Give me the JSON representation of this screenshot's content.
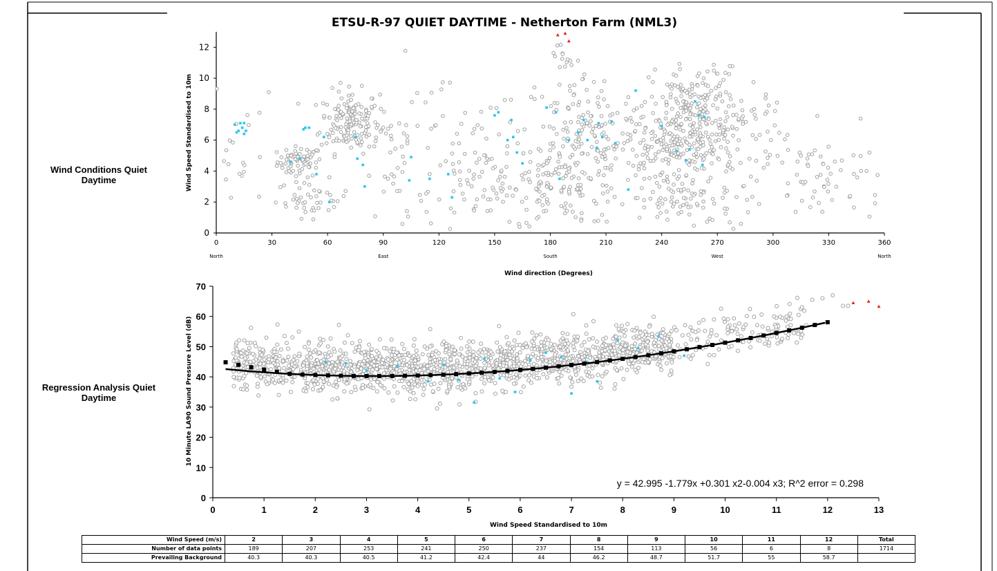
{
  "colors": {
    "grey_point": "#a0a0a0",
    "cyan_point": "#2ec5f0",
    "red_point": "#e8211b",
    "fit_line": "#000000"
  },
  "side_labels": {
    "top": "Wind Conditions Quiet Daytime",
    "bottom": "Regression Analysis Quiet Daytime"
  },
  "chart_data": [
    {
      "type": "scatter",
      "title": "ETSU-R-97 QUIET DAYTIME - Netherton Farm (NML3)",
      "xlabel": "Wind direction (Degrees)",
      "ylabel": "Wind Speed Standardised to 10m",
      "xlim": [
        0,
        360
      ],
      "ylim": [
        0,
        13
      ],
      "x_ticks": [
        0,
        30,
        60,
        90,
        120,
        150,
        180,
        210,
        240,
        270,
        300,
        330,
        360
      ],
      "y_ticks": [
        0,
        2,
        4,
        6,
        8,
        10,
        12
      ],
      "direction_labels": [
        {
          "x": 0,
          "label": "North"
        },
        {
          "x": 90,
          "label": "East"
        },
        {
          "x": 180,
          "label": "South"
        },
        {
          "x": 270,
          "label": "West"
        },
        {
          "x": 360,
          "label": "North"
        }
      ],
      "grey_clusters": [
        {
          "cx": 45,
          "cy": 4.6,
          "sx": 6,
          "sy": 0.5,
          "n": 70
        },
        {
          "cx": 72,
          "cy": 7.2,
          "sx": 8,
          "sy": 1.0,
          "n": 170
        },
        {
          "cx": 52,
          "cy": 2.2,
          "sx": 10,
          "sy": 0.6,
          "n": 45
        },
        {
          "cx": 150,
          "cy": 2.8,
          "sx": 25,
          "sy": 1.2,
          "n": 90
        },
        {
          "cx": 130,
          "cy": 5.5,
          "sx": 18,
          "sy": 2.0,
          "n": 45
        },
        {
          "cx": 190,
          "cy": 3.5,
          "sx": 16,
          "sy": 1.5,
          "n": 120
        },
        {
          "cx": 200,
          "cy": 6.5,
          "sx": 18,
          "sy": 2.0,
          "n": 140
        },
        {
          "cx": 245,
          "cy": 6.0,
          "sx": 12,
          "sy": 1.0,
          "n": 170
        },
        {
          "cx": 258,
          "cy": 8.3,
          "sx": 12,
          "sy": 1.2,
          "n": 150
        },
        {
          "cx": 250,
          "cy": 2.3,
          "sx": 14,
          "sy": 0.9,
          "n": 90
        },
        {
          "cx": 280,
          "cy": 5.5,
          "sx": 14,
          "sy": 2.2,
          "n": 110
        },
        {
          "cx": 330,
          "cy": 3.5,
          "sx": 15,
          "sy": 1.5,
          "n": 60
        },
        {
          "cx": 12,
          "cy": 4.5,
          "sx": 10,
          "sy": 2.0,
          "n": 25
        },
        {
          "cx": 95,
          "cy": 4.5,
          "sx": 8,
          "sy": 2.5,
          "n": 30
        },
        {
          "cx": 186,
          "cy": 11.5,
          "sx": 3,
          "sy": 0.9,
          "n": 18
        }
      ],
      "cyan_points": [
        [
          10,
          7.0
        ],
        [
          12,
          6.6
        ],
        [
          13,
          7.1
        ],
        [
          15,
          6.4
        ],
        [
          15,
          7.1
        ],
        [
          16,
          6.6
        ],
        [
          11,
          6.5
        ],
        [
          14,
          6.8
        ],
        [
          47,
          6.7
        ],
        [
          48,
          6.8
        ],
        [
          50,
          6.8
        ],
        [
          58,
          6.2
        ],
        [
          45,
          4.8
        ],
        [
          40,
          4.6
        ],
        [
          54,
          3.8
        ],
        [
          61,
          2.0
        ],
        [
          75,
          6.2
        ],
        [
          76,
          4.8
        ],
        [
          79,
          4.4
        ],
        [
          80,
          3.0
        ],
        [
          104,
          3.4
        ],
        [
          105,
          4.9
        ],
        [
          115,
          3.5
        ],
        [
          125,
          3.8
        ],
        [
          127,
          2.3
        ],
        [
          150,
          7.6
        ],
        [
          152,
          7.8
        ],
        [
          157,
          6.0
        ],
        [
          159,
          7.3
        ],
        [
          160,
          6.2
        ],
        [
          162,
          5.2
        ],
        [
          165,
          4.5
        ],
        [
          178,
          8.1
        ],
        [
          183,
          7.8
        ],
        [
          185,
          3.5
        ],
        [
          190,
          6.0
        ],
        [
          195,
          6.5
        ],
        [
          198,
          7.3
        ],
        [
          200,
          6.0
        ],
        [
          205,
          5.5
        ],
        [
          206,
          7.1
        ],
        [
          208,
          6.2
        ],
        [
          213,
          7.2
        ],
        [
          215,
          5.8
        ],
        [
          222,
          2.8
        ],
        [
          226,
          9.2
        ],
        [
          240,
          6.9
        ],
        [
          248,
          5.3
        ],
        [
          253,
          4.7
        ],
        [
          255,
          5.4
        ],
        [
          258,
          8.5
        ],
        [
          260,
          7.6
        ],
        [
          262,
          4.4
        ],
        [
          263,
          7.5
        ]
      ],
      "red_points": [
        [
          184,
          12.8
        ],
        [
          188,
          12.9
        ],
        [
          190,
          12.4
        ]
      ]
    },
    {
      "type": "scatter",
      "title": "",
      "xlabel": "Wind Speed Standardised to 10m",
      "ylabel": "10 Minute LA90 Sound Pressure Level (dB)",
      "xlim": [
        0,
        13
      ],
      "ylim": [
        0,
        70
      ],
      "x_ticks": [
        0,
        1,
        2,
        3,
        4,
        5,
        6,
        7,
        8,
        9,
        10,
        11,
        12,
        13
      ],
      "y_ticks": [
        0,
        10,
        20,
        30,
        40,
        50,
        60,
        70
      ],
      "equation": "y = 42.995 -1.779x +0.301 x2-0.004 x3; R^2 error = 0.298",
      "fit_coefficients": [
        42.995,
        -1.779,
        0.301,
        -0.004
      ],
      "fit_range": [
        0.25,
        12
      ],
      "scatter_spread_db": 4.0,
      "scatter_count": 1700,
      "cyan_points": [
        [
          2.2,
          45.0
        ],
        [
          2.6,
          44.5
        ],
        [
          3.0,
          42.0
        ],
        [
          3.6,
          43.5
        ],
        [
          4.2,
          38.5
        ],
        [
          4.5,
          44.0
        ],
        [
          4.8,
          39.0
        ],
        [
          5.1,
          31.5
        ],
        [
          5.3,
          46.0
        ],
        [
          5.6,
          39.5
        ],
        [
          5.9,
          35.0
        ],
        [
          6.2,
          45.5
        ],
        [
          6.5,
          48.0
        ],
        [
          6.8,
          46.5
        ],
        [
          7.0,
          34.5
        ],
        [
          7.3,
          45.0
        ],
        [
          7.5,
          38.5
        ],
        [
          7.9,
          52.0
        ],
        [
          8.3,
          49.5
        ],
        [
          8.7,
          53.5
        ],
        [
          9.2,
          47.0
        ]
      ],
      "red_points": [
        [
          12.5,
          64.5
        ],
        [
          12.8,
          65.0
        ],
        [
          13.0,
          63.3
        ]
      ],
      "upper_points": [
        [
          11.2,
          60.0
        ],
        [
          11.5,
          63.0
        ],
        [
          11.7,
          65.5
        ],
        [
          11.9,
          66.0
        ],
        [
          12.1,
          67.0
        ],
        [
          12.3,
          63.5
        ],
        [
          12.4,
          63.5
        ]
      ]
    }
  ],
  "table": {
    "row_headers": [
      "Wind Speed (m/s)",
      "Number of data points",
      "Prevailing Background"
    ],
    "wind_speeds": [
      "2",
      "3",
      "4",
      "5",
      "6",
      "7",
      "8",
      "9",
      "10",
      "11",
      "12",
      "Total"
    ],
    "data_points": [
      "189",
      "207",
      "253",
      "241",
      "250",
      "237",
      "154",
      "113",
      "56",
      "6",
      "8",
      "1714"
    ],
    "background": [
      "40.3",
      "40.3",
      "40.5",
      "41.2",
      "42.4",
      "44",
      "46.2",
      "48.7",
      "51.7",
      "55",
      "58.7",
      ""
    ]
  }
}
